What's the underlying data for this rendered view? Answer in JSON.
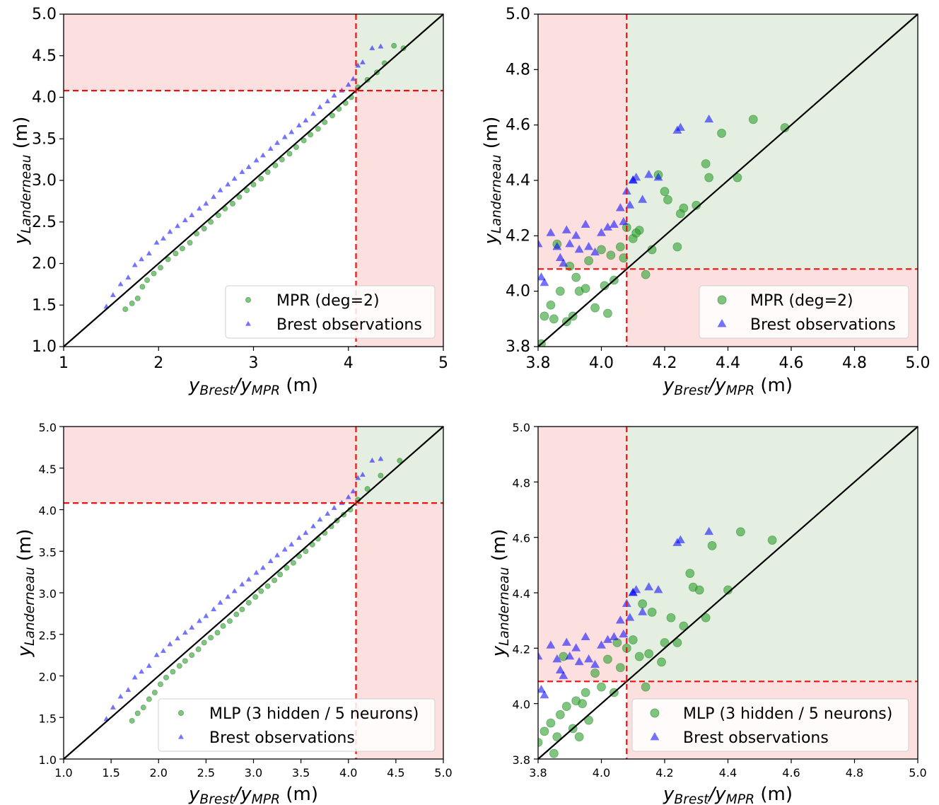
{
  "figure": {
    "xlabel_parts": [
      "y",
      "Brest",
      "/y",
      "MPR",
      " (m)"
    ],
    "ylabel_parts": [
      "y",
      "Landerneau",
      " (m)"
    ]
  },
  "chart_data": [
    {
      "type": "scatter",
      "panel": "top-left",
      "xlim": [
        1,
        5
      ],
      "ylim": [
        1,
        5
      ],
      "xticks": [
        "1",
        "2",
        "3",
        "4",
        "5"
      ],
      "yticks": [
        "1.0",
        "1.5",
        "2.0",
        "2.5",
        "3.0",
        "3.5",
        "4.0",
        "4.5",
        "5.0"
      ],
      "threshold": 4.08,
      "legend_placement": "lower-right",
      "series": [
        {
          "name": "MPR (deg=2)",
          "marker": "circle",
          "color": "#2ca02c",
          "x": [
            1.65,
            1.72,
            1.78,
            1.83,
            1.88,
            1.95,
            2.02,
            2.1,
            2.18,
            2.25,
            2.33,
            2.4,
            2.48,
            2.55,
            2.63,
            2.7,
            2.78,
            2.85,
            2.93,
            3.0,
            3.08,
            3.15,
            3.23,
            3.3,
            3.38,
            3.45,
            3.53,
            3.6,
            3.68,
            3.75,
            3.83,
            3.9,
            3.97,
            4.03,
            4.1,
            4.2,
            4.3,
            4.38,
            4.48,
            4.58
          ],
          "y": [
            1.45,
            1.52,
            1.58,
            1.72,
            1.8,
            1.88,
            1.95,
            2.05,
            2.12,
            2.18,
            2.25,
            2.36,
            2.42,
            2.5,
            2.58,
            2.66,
            2.72,
            2.8,
            2.88,
            2.95,
            3.02,
            3.1,
            3.18,
            3.25,
            3.32,
            3.4,
            3.48,
            3.55,
            3.62,
            3.7,
            3.78,
            3.86,
            3.93,
            4.0,
            4.12,
            4.21,
            4.3,
            4.41,
            4.62,
            4.59
          ]
        },
        {
          "name": "Brest observations",
          "marker": "triangle",
          "color": "#0000ff",
          "x": [
            1.45,
            1.52,
            1.6,
            1.68,
            1.75,
            1.82,
            1.9,
            1.98,
            2.05,
            2.12,
            2.2,
            2.28,
            2.35,
            2.43,
            2.5,
            2.58,
            2.65,
            2.73,
            2.8,
            2.88,
            2.95,
            3.03,
            3.1,
            3.18,
            3.25,
            3.33,
            3.4,
            3.48,
            3.55,
            3.63,
            3.7,
            3.78,
            3.85,
            3.93,
            4.0,
            4.05,
            4.1,
            4.15,
            4.25,
            4.34
          ],
          "y": [
            1.48,
            1.62,
            1.75,
            1.83,
            1.98,
            2.05,
            2.12,
            2.25,
            2.3,
            2.38,
            2.45,
            2.52,
            2.58,
            2.66,
            2.72,
            2.8,
            2.88,
            2.95,
            3.02,
            3.1,
            3.16,
            3.24,
            3.3,
            3.38,
            3.45,
            3.52,
            3.58,
            3.66,
            3.72,
            3.8,
            3.88,
            3.95,
            4.02,
            4.08,
            4.15,
            4.22,
            4.38,
            4.42,
            4.59,
            4.61
          ]
        }
      ]
    },
    {
      "type": "scatter",
      "panel": "top-right",
      "xlim": [
        3.8,
        5.0
      ],
      "ylim": [
        3.8,
        5.0
      ],
      "xticks": [
        "3.8",
        "4.0",
        "4.2",
        "4.4",
        "4.6",
        "4.8",
        "5.0"
      ],
      "yticks": [
        "3.8",
        "4.0",
        "4.2",
        "4.4",
        "4.6",
        "4.8",
        "5.0"
      ],
      "threshold": 4.08,
      "legend_placement": "lower-right",
      "series": [
        {
          "name": "MPR (deg=2)",
          "marker": "circle",
          "color": "#2ca02c",
          "x": [
            3.81,
            3.82,
            3.84,
            3.86,
            3.87,
            3.89,
            3.9,
            3.91,
            3.93,
            3.95,
            3.96,
            3.98,
            4.0,
            4.01,
            4.02,
            4.04,
            4.06,
            4.07,
            4.08,
            4.1,
            4.12,
            4.14,
            4.16,
            4.18,
            4.21,
            4.24,
            4.26,
            4.3,
            4.33,
            4.38,
            4.43,
            4.48,
            4.58,
            3.85,
            3.92,
            4.03,
            4.11,
            4.2,
            4.25,
            4.34
          ],
          "y": [
            3.81,
            3.91,
            3.95,
            4.17,
            4.0,
            3.89,
            4.09,
            3.91,
            4.0,
            4.01,
            4.11,
            3.94,
            4.15,
            4.02,
            3.92,
            4.04,
            4.16,
            4.12,
            4.23,
            4.19,
            4.22,
            4.06,
            4.15,
            4.42,
            4.33,
            4.16,
            4.3,
            4.31,
            4.46,
            4.57,
            4.41,
            4.62,
            4.59,
            3.9,
            4.05,
            4.13,
            4.21,
            4.36,
            4.28,
            4.41
          ]
        },
        {
          "name": "Brest observations",
          "marker": "triangle",
          "color": "#0000ff",
          "x": [
            3.8,
            3.81,
            3.82,
            3.84,
            3.86,
            3.87,
            3.88,
            3.89,
            3.9,
            3.92,
            3.93,
            3.95,
            3.96,
            3.98,
            4.0,
            4.02,
            4.04,
            4.06,
            4.07,
            4.08,
            4.09,
            4.1,
            4.11,
            4.13,
            4.15,
            4.18,
            4.24,
            4.25,
            4.34,
            4.1
          ],
          "y": [
            4.17,
            4.05,
            4.03,
            4.21,
            4.16,
            4.12,
            4.1,
            4.22,
            4.17,
            4.2,
            4.15,
            4.24,
            4.16,
            4.14,
            4.21,
            4.23,
            4.24,
            4.3,
            4.25,
            4.36,
            4.31,
            4.4,
            4.41,
            4.33,
            4.42,
            4.41,
            4.58,
            4.59,
            4.62,
            4.4
          ]
        }
      ]
    },
    {
      "type": "scatter",
      "panel": "bottom-left",
      "xlim": [
        1.0,
        5.0
      ],
      "ylim": [
        1.0,
        5.0
      ],
      "xticks": [
        "1.0",
        "1.5",
        "2.0",
        "2.5",
        "3.0",
        "3.5",
        "4.0",
        "4.5",
        "5.0"
      ],
      "yticks": [
        "1.0",
        "1.5",
        "2.0",
        "2.5",
        "3.0",
        "3.5",
        "4.0",
        "4.5",
        "5.0"
      ],
      "threshold": 4.08,
      "legend_placement": "lower-right",
      "series": [
        {
          "name": "MLP (3 hidden / 5 neurons)",
          "marker": "circle",
          "color": "#2ca02c",
          "x": [
            1.72,
            1.78,
            1.84,
            1.9,
            1.96,
            2.02,
            2.08,
            2.15,
            2.22,
            2.28,
            2.35,
            2.42,
            2.48,
            2.55,
            2.62,
            2.68,
            2.75,
            2.82,
            2.88,
            2.95,
            3.02,
            3.08,
            3.15,
            3.22,
            3.28,
            3.35,
            3.42,
            3.48,
            3.55,
            3.62,
            3.68,
            3.75,
            3.82,
            3.88,
            3.95,
            4.02,
            4.1,
            4.2,
            4.34,
            4.54
          ],
          "y": [
            1.46,
            1.55,
            1.62,
            1.72,
            1.8,
            1.9,
            1.98,
            2.05,
            2.12,
            2.18,
            2.25,
            2.32,
            2.4,
            2.46,
            2.52,
            2.6,
            2.66,
            2.74,
            2.8,
            2.88,
            2.95,
            3.02,
            3.08,
            3.15,
            3.22,
            3.3,
            3.36,
            3.44,
            3.5,
            3.58,
            3.65,
            3.72,
            3.8,
            3.87,
            3.94,
            4.0,
            4.12,
            4.25,
            4.41,
            4.59
          ]
        },
        {
          "name": "Brest observations",
          "marker": "triangle",
          "color": "#0000ff",
          "x": [
            1.45,
            1.52,
            1.6,
            1.68,
            1.75,
            1.82,
            1.9,
            1.98,
            2.05,
            2.12,
            2.2,
            2.28,
            2.35,
            2.43,
            2.5,
            2.58,
            2.65,
            2.73,
            2.8,
            2.88,
            2.95,
            3.03,
            3.1,
            3.18,
            3.25,
            3.33,
            3.4,
            3.48,
            3.55,
            3.63,
            3.7,
            3.78,
            3.85,
            3.93,
            4.0,
            4.05,
            4.1,
            4.15,
            4.25,
            4.34
          ],
          "y": [
            1.48,
            1.62,
            1.75,
            1.83,
            1.98,
            2.05,
            2.12,
            2.25,
            2.3,
            2.38,
            2.45,
            2.52,
            2.58,
            2.66,
            2.72,
            2.8,
            2.88,
            2.95,
            3.02,
            3.1,
            3.16,
            3.24,
            3.3,
            3.38,
            3.45,
            3.52,
            3.58,
            3.66,
            3.72,
            3.8,
            3.88,
            3.95,
            4.02,
            4.08,
            4.15,
            4.22,
            4.38,
            4.42,
            4.59,
            4.61
          ]
        }
      ]
    },
    {
      "type": "scatter",
      "panel": "bottom-right",
      "xlim": [
        3.8,
        5.0
      ],
      "ylim": [
        3.8,
        5.0
      ],
      "xticks": [
        "3.8",
        "4.0",
        "4.2",
        "4.4",
        "4.6",
        "4.8",
        "5.0"
      ],
      "yticks": [
        "3.8",
        "4.0",
        "4.2",
        "4.4",
        "4.6",
        "4.8",
        "5.0"
      ],
      "threshold": 4.08,
      "legend_placement": "lower-right",
      "series": [
        {
          "name": "MLP (3 hidden / 5 neurons)",
          "marker": "circle",
          "color": "#2ca02c",
          "x": [
            3.8,
            3.82,
            3.84,
            3.85,
            3.87,
            3.88,
            3.89,
            3.91,
            3.92,
            3.93,
            3.94,
            3.96,
            3.98,
            4.0,
            4.02,
            4.04,
            4.06,
            4.08,
            4.1,
            4.12,
            4.14,
            4.16,
            4.19,
            4.22,
            4.24,
            4.26,
            4.29,
            4.31,
            4.33,
            4.35,
            4.4,
            4.44,
            4.54,
            3.86,
            3.95,
            4.05,
            4.13,
            4.2,
            4.28,
            4.15
          ],
          "y": [
            3.86,
            3.9,
            3.93,
            3.82,
            3.96,
            4.17,
            3.99,
            3.91,
            4.01,
            3.88,
            4.0,
            3.94,
            4.11,
            4.06,
            4.16,
            4.04,
            4.13,
            4.2,
            4.23,
            4.17,
            4.06,
            4.33,
            4.15,
            4.31,
            4.22,
            4.28,
            4.42,
            4.41,
            4.31,
            4.57,
            4.41,
            4.62,
            4.59,
            3.88,
            4.04,
            4.22,
            4.36,
            4.22,
            4.47,
            4.18
          ]
        },
        {
          "name": "Brest observations",
          "marker": "triangle",
          "color": "#0000ff",
          "x": [
            3.8,
            3.81,
            3.82,
            3.84,
            3.86,
            3.87,
            3.88,
            3.89,
            3.9,
            3.92,
            3.93,
            3.95,
            3.96,
            3.98,
            4.0,
            4.02,
            4.04,
            4.06,
            4.07,
            4.08,
            4.09,
            4.1,
            4.11,
            4.13,
            4.15,
            4.18,
            4.24,
            4.25,
            4.34,
            4.1
          ],
          "y": [
            4.17,
            4.05,
            4.03,
            4.21,
            4.16,
            4.12,
            4.1,
            4.22,
            4.17,
            4.2,
            4.15,
            4.24,
            4.16,
            4.14,
            4.21,
            4.23,
            4.24,
            4.3,
            4.25,
            4.36,
            4.31,
            4.4,
            4.41,
            4.33,
            4.42,
            4.41,
            4.58,
            4.59,
            4.62,
            4.4
          ]
        }
      ]
    }
  ]
}
